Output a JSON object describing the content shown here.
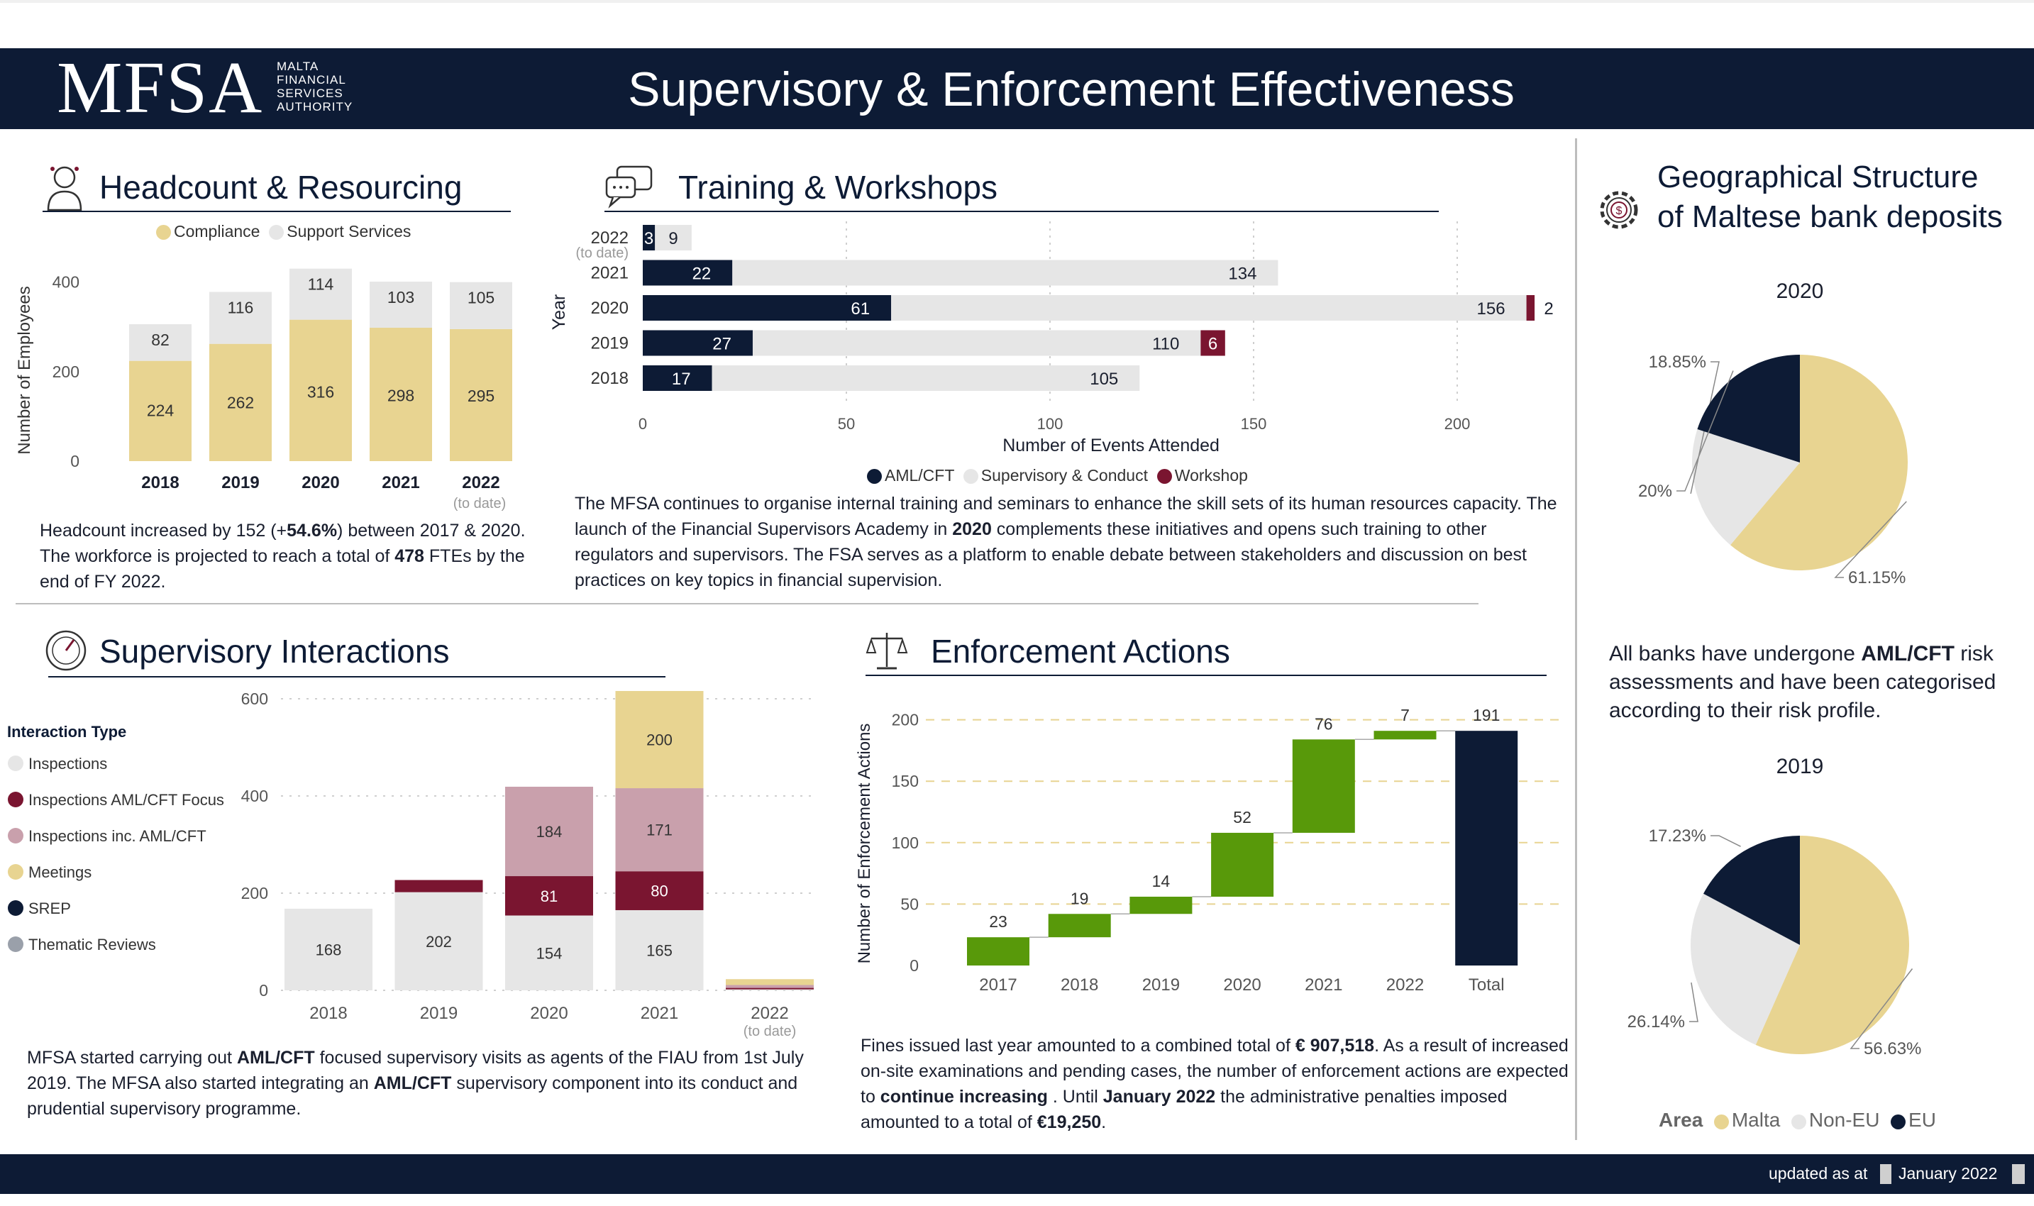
{
  "header": {
    "logo": "MFSA",
    "logo_sub": [
      "MALTA",
      "FINANCIAL",
      "SERVICES",
      "AUTHORITY"
    ],
    "title": "Supervisory & Enforcement Effectiveness"
  },
  "headcount": {
    "title": "Headcount & Resourcing",
    "text_html": "Headcount increased by 152 (+<b>54.6%</b>) between 2017 &amp; 2020. The workforce is projected to reach a total of <b>478</b> FTEs by the end of FY 2022."
  },
  "training": {
    "title": "Training & Workshops",
    "text_html": "The MFSA continues to organise internal training and seminars to enhance the skill sets of its human resources capacity. The launch of the Financial Supervisors Academy in <b>2020</b> complements these initiatives and opens such training to other regulators and supervisors. The FSA serves as a platform to enable debate between stakeholders and discussion on best practices on key topics in financial supervision."
  },
  "supervisory": {
    "title": "Supervisory Interactions",
    "text_html": "MFSA started carrying out <b>AML/CFT</b> focused supervisory visits as agents of the FIAU from 1st July 2019. The MFSA also started integrating an <b>AML/CFT</b> supervisory component into its conduct and prudential supervisory programme."
  },
  "enforcement": {
    "title": "Enforcement Actions",
    "text_html": "Fines issued last year amounted to a combined total of <b>€ 907,518</b>. As a result of increased on-site examinations and pending cases, the number of enforcement actions are expected to <b>continue increasing</b> . Until <b>January 2022</b> the administrative penalties imposed amounted to a total of <b>€19,250</b>."
  },
  "geo": {
    "title_line1": "Geographical Structure",
    "title_line2": "of Maltese bank deposits",
    "text_html": "All banks have undergone <b>AML/CFT</b> risk assessments and have been categorised according to their risk profile."
  },
  "footer": {
    "updated_label": "updated as at",
    "date": "January 2022"
  },
  "colors": {
    "navy": "#0d1b35",
    "gold": "#e8d491",
    "light_grey": "#e6e6e6",
    "maroon": "#7a1530",
    "mauve": "#c9a0ac",
    "green": "#58990a",
    "thematic": "#9aa0aa"
  },
  "chart_data": [
    {
      "id": "headcount",
      "type": "bar",
      "stacked": true,
      "categories": [
        "2018",
        "2019",
        "2020",
        "2021",
        "2022"
      ],
      "category_notes": [
        "",
        "",
        "",
        "",
        "(to date)"
      ],
      "series": [
        {
          "name": "Compliance",
          "color": "#e8d491",
          "values": [
            224,
            262,
            316,
            298,
            295
          ]
        },
        {
          "name": "Support Services",
          "color": "#e6e6e6",
          "values": [
            82,
            116,
            114,
            103,
            105
          ]
        }
      ],
      "ylabel": "Number of Employees",
      "yticks": [
        0,
        200,
        400
      ],
      "ylim": [
        0,
        420
      ],
      "legend": "top"
    },
    {
      "id": "training",
      "type": "bar",
      "orientation": "horizontal",
      "stacked": true,
      "categories": [
        "2022",
        "2021",
        "2020",
        "2019",
        "2018"
      ],
      "category_notes": [
        "(to date)",
        "",
        "",
        "",
        ""
      ],
      "series": [
        {
          "name": "AML/CFT",
          "color": "#0d1b35",
          "values": [
            3,
            22,
            61,
            27,
            17
          ]
        },
        {
          "name": "Supervisory & Conduct",
          "color": "#e6e6e6",
          "values": [
            9,
            134,
            156,
            110,
            105
          ]
        },
        {
          "name": "Workshop",
          "color": "#7a1530",
          "values": [
            0,
            0,
            2,
            6,
            0
          ]
        }
      ],
      "xlabel": "Number of Events Attended",
      "ylabel": "Year",
      "xticks": [
        0,
        50,
        100,
        150,
        200
      ],
      "xlim": [
        0,
        230
      ],
      "legend": "bottom"
    },
    {
      "id": "supervisory",
      "type": "bar",
      "stacked": true,
      "categories": [
        "2018",
        "2019",
        "2020",
        "2021",
        "2022"
      ],
      "category_notes": [
        "",
        "",
        "",
        "",
        "(to date)"
      ],
      "legend_title": "Interaction Type",
      "series": [
        {
          "name": "Inspections",
          "color": "#e6e6e6",
          "values": [
            168,
            202,
            154,
            165,
            2
          ]
        },
        {
          "name": "Inspections AML/CFT Focus",
          "color": "#7a1530",
          "values": [
            0,
            25,
            81,
            80,
            3
          ]
        },
        {
          "name": "Inspections inc. AML/CFT",
          "color": "#c9a0ac",
          "values": [
            0,
            0,
            184,
            171,
            6
          ]
        },
        {
          "name": "Meetings",
          "color": "#e8d491",
          "values": [
            0,
            0,
            0,
            200,
            12
          ]
        },
        {
          "name": "SREP",
          "color": "#0d1b35",
          "values": [
            0,
            0,
            0,
            0,
            0
          ]
        },
        {
          "name": "Thematic Reviews",
          "color": "#9aa0aa",
          "values": [
            0,
            0,
            0,
            0,
            0
          ]
        }
      ],
      "value_labels": [
        [
          "168"
        ],
        [
          "202"
        ],
        [
          "154",
          "81",
          "184"
        ],
        [
          "165",
          "80",
          "171",
          "200"
        ],
        []
      ],
      "yticks": [
        0,
        200,
        400,
        600
      ],
      "ylim": [
        0,
        600
      ],
      "legend": "left"
    },
    {
      "id": "enforcement",
      "type": "waterfall",
      "categories": [
        "2017",
        "2018",
        "2019",
        "2020",
        "2021",
        "2022",
        "Total"
      ],
      "values": [
        23,
        19,
        14,
        52,
        76,
        7,
        191
      ],
      "increase_color": "#58990a",
      "total_color": "#0d1b35",
      "ylabel": "Number of Enforcement Actions",
      "yticks": [
        0,
        50,
        100,
        150,
        200
      ],
      "ylim": [
        0,
        200
      ]
    },
    {
      "id": "geo2020",
      "type": "pie",
      "title": "2020",
      "labels": [
        "Malta",
        "Non-EU",
        "EU"
      ],
      "values": [
        61.15,
        18.85,
        20
      ],
      "value_labels": [
        "61.15%",
        "18.85%",
        "20%"
      ],
      "colors": [
        "#e8d491",
        "#e6e6e6",
        "#0d1b35"
      ]
    },
    {
      "id": "geo2019",
      "type": "pie",
      "title": "2019",
      "labels": [
        "Malta",
        "Non-EU",
        "EU"
      ],
      "values": [
        56.63,
        26.14,
        17.23
      ],
      "value_labels": [
        "56.63%",
        "26.14%",
        "17.23%"
      ],
      "colors": [
        "#e8d491",
        "#e6e6e6",
        "#0d1b35"
      ],
      "legend_title": "Area",
      "legend": "bottom"
    }
  ]
}
